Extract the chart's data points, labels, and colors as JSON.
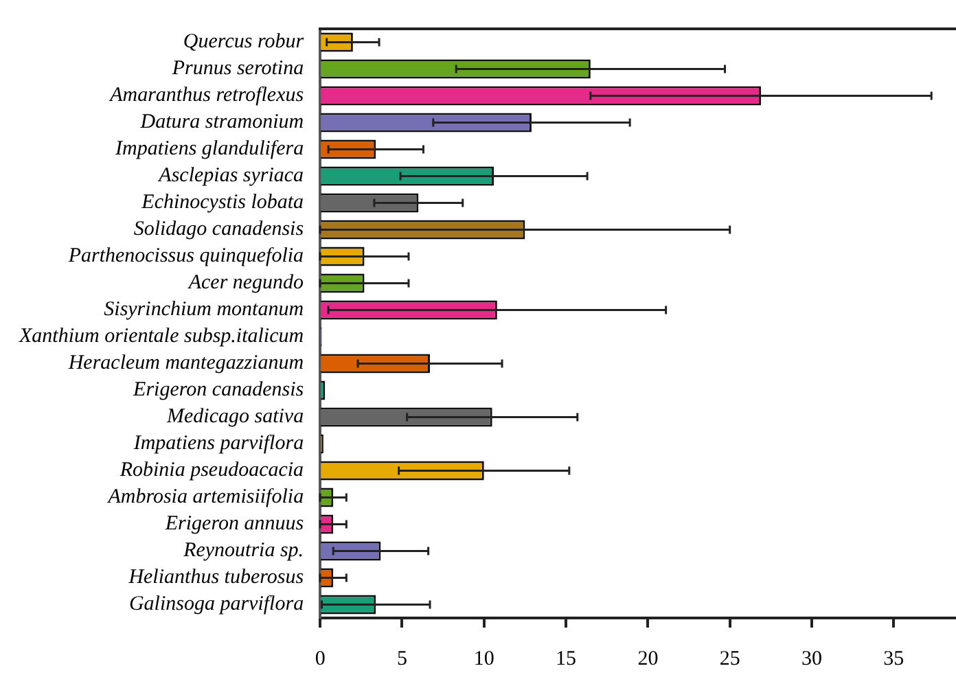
{
  "chart_data": {
    "type": "bar",
    "orientation": "horizontal",
    "categories": [
      "Quercus robur",
      "Prunus serotina",
      "Amaranthus retroflexus",
      "Datura stramonium",
      "Impatiens glandulifera",
      "Asclepias syriaca",
      "Echinocystis lobata",
      "Solidago canadensis",
      "Parthenocissus quinquefolia",
      "Acer negundo",
      "Sisyrinchium montanum",
      "Xanthium orientale subsp.italicum",
      "Heracleum mantegazzianum",
      "Erigeron canadensis",
      "Medicago sativa",
      "Impatiens parviflora",
      "Robinia pseudoacacia",
      "Ambrosia artemisiifolia",
      "Erigeron annuus",
      "Reynoutria sp.",
      "Helianthus tuberosus",
      "Galinsoga parviflora"
    ],
    "values": [
      2.0,
      16.5,
      26.9,
      12.9,
      3.4,
      10.6,
      6.0,
      12.5,
      2.7,
      2.7,
      10.8,
      0.1,
      6.7,
      0.3,
      10.5,
      0.2,
      10.0,
      0.8,
      0.8,
      3.7,
      0.8,
      3.4
    ],
    "errors": [
      1.6,
      8.2,
      10.4,
      6.0,
      2.9,
      5.7,
      2.7,
      12.5,
      2.7,
      2.7,
      10.3,
      null,
      4.4,
      null,
      5.2,
      null,
      5.2,
      0.8,
      0.8,
      2.9,
      0.8,
      3.3
    ],
    "colors": [
      "#e6ab02",
      "#66a61e",
      "#e7298a",
      "#7570b3",
      "#d95f02",
      "#1b9e77",
      "#666666",
      "#a6761d",
      "#e6ab02",
      "#66a61e",
      "#e7298a",
      "#7570b3",
      "#d95f02",
      "#1b9e77",
      "#666666",
      "#a6761d",
      "#e6ab02",
      "#66a61e",
      "#e7298a",
      "#7570b3",
      "#d95f02",
      "#1b9e77"
    ],
    "xlim": [
      0,
      38.8
    ],
    "xticks": [
      0,
      5,
      10,
      15,
      20,
      25,
      30,
      35
    ],
    "grid": false,
    "legend": false
  }
}
